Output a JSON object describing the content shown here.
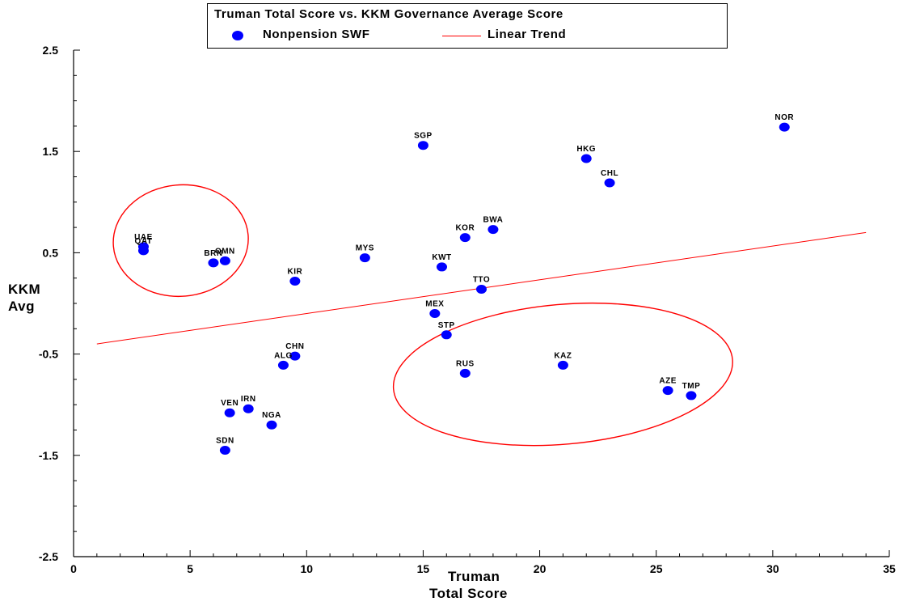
{
  "chart_data": {
    "type": "scatter",
    "title": "Truman Total Score vs. KKM Governance Average Score",
    "xlabel_line1": "Truman",
    "xlabel_line2": "Total Score",
    "ylabel_line1": "KKM",
    "ylabel_line2": "Avg",
    "xlim": [
      0,
      35
    ],
    "ylim": [
      -2.5,
      2.5
    ],
    "xticks": [
      0,
      5,
      10,
      15,
      20,
      25,
      30,
      35
    ],
    "yticks": [
      "2.5",
      "1.5",
      "0.5",
      "-0.5",
      "-1.5",
      "-2.5"
    ],
    "ytick_values": [
      2.5,
      1.5,
      0.5,
      -0.5,
      -1.5,
      -2.5
    ],
    "grid": false,
    "legend_position": "top-center",
    "series": [
      {
        "name": "Nonpension SWF",
        "color": "#0000ff",
        "points": [
          {
            "label": "UAE",
            "x": 3.0,
            "y": 0.56
          },
          {
            "label": "QAT",
            "x": 3.0,
            "y": 0.52
          },
          {
            "label": "BRN",
            "x": 6.0,
            "y": 0.4
          },
          {
            "label": "OMN",
            "x": 6.5,
            "y": 0.42
          },
          {
            "label": "KIR",
            "x": 9.5,
            "y": 0.22
          },
          {
            "label": "MYS",
            "x": 12.5,
            "y": 0.45
          },
          {
            "label": "SGP",
            "x": 15.0,
            "y": 1.56
          },
          {
            "label": "KOR",
            "x": 16.8,
            "y": 0.65
          },
          {
            "label": "BWA",
            "x": 18.0,
            "y": 0.73
          },
          {
            "label": "KWT",
            "x": 15.8,
            "y": 0.36
          },
          {
            "label": "TTO",
            "x": 17.5,
            "y": 0.14
          },
          {
            "label": "MEX",
            "x": 15.5,
            "y": -0.1
          },
          {
            "label": "STP",
            "x": 16.0,
            "y": -0.31
          },
          {
            "label": "HKG",
            "x": 22.0,
            "y": 1.43
          },
          {
            "label": "CHL",
            "x": 23.0,
            "y": 1.19
          },
          {
            "label": "NOR",
            "x": 30.5,
            "y": 1.74
          },
          {
            "label": "CHN",
            "x": 9.5,
            "y": -0.52
          },
          {
            "label": "ALG",
            "x": 9.0,
            "y": -0.61
          },
          {
            "label": "RUS",
            "x": 16.8,
            "y": -0.69
          },
          {
            "label": "KAZ",
            "x": 21.0,
            "y": -0.61
          },
          {
            "label": "AZE",
            "x": 25.5,
            "y": -0.86
          },
          {
            "label": "TMP",
            "x": 26.5,
            "y": -0.91
          },
          {
            "label": "VEN",
            "x": 6.7,
            "y": -1.08
          },
          {
            "label": "IRN",
            "x": 7.5,
            "y": -1.04
          },
          {
            "label": "NGA",
            "x": 8.5,
            "y": -1.2
          },
          {
            "label": "SDN",
            "x": 6.5,
            "y": -1.45
          }
        ]
      },
      {
        "name": "Linear Trend",
        "color": "#ff0000",
        "line": [
          {
            "x": 1.0,
            "y": -0.4
          },
          {
            "x": 34.0,
            "y": 0.7
          }
        ]
      }
    ],
    "annotations": [
      {
        "shape": "ellipse",
        "cx": 4.6,
        "cy": 0.62,
        "rx": 2.9,
        "ry": 0.55,
        "rotate": -5,
        "color": "#ff0000"
      },
      {
        "shape": "ellipse",
        "cx": 21.0,
        "cy": -0.7,
        "rx": 7.3,
        "ry": 0.69,
        "rotate": -5,
        "color": "#ff0000"
      }
    ]
  }
}
